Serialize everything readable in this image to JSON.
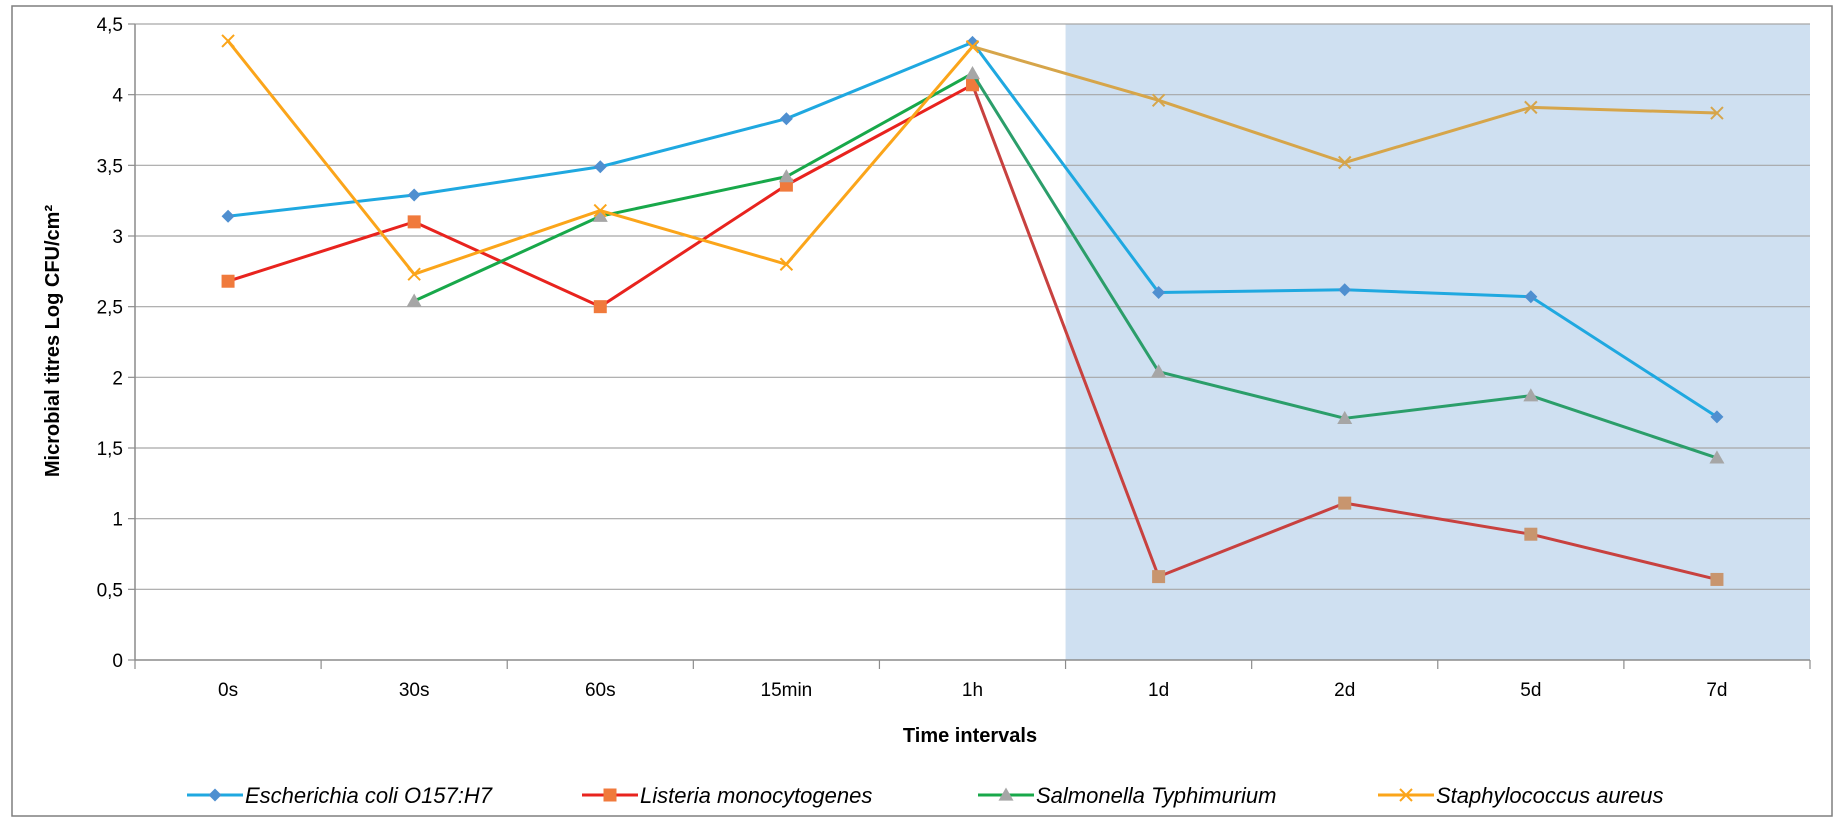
{
  "chart_data": {
    "type": "line",
    "title": "",
    "xlabel": "Time intervals",
    "ylabel": "Microbial titres Log CFU/cm²",
    "ylim": [
      0,
      4.5
    ],
    "y_ticks": [
      "0",
      "0,5",
      "1",
      "1,5",
      "2",
      "2,5",
      "3",
      "3,5",
      "4",
      "4,5"
    ],
    "categories": [
      "0s",
      "30s",
      "60s",
      "15min",
      "1h",
      "1d",
      "2d",
      "5d",
      "7d"
    ],
    "grid": true,
    "legend_position": "bottom",
    "shaded_region": {
      "from_category": "1d",
      "to_category": "7d",
      "color": "#cfe0f1"
    },
    "series": [
      {
        "name": "Escherichia coli O157:H7",
        "values": [
          3.14,
          3.29,
          3.49,
          3.83,
          4.37,
          2.6,
          2.62,
          2.57,
          1.72
        ],
        "color": "#1fa8e0",
        "color_shaded": "#1fa8e0",
        "marker": "diamond",
        "marker_color": "#4f8fd0"
      },
      {
        "name": "Listeria monocytogenes",
        "values": [
          2.68,
          3.1,
          2.5,
          3.36,
          4.07,
          0.59,
          1.11,
          0.89,
          0.57
        ],
        "color": "#e8231e",
        "color_shaded": "#c8413f",
        "marker": "square",
        "marker_color": "#f07a3c",
        "marker_color_shaded": "#c8956e"
      },
      {
        "name": "Salmonella Typhimurium",
        "values": [
          null,
          2.54,
          3.14,
          3.42,
          4.15,
          2.04,
          1.71,
          1.87,
          1.43
        ],
        "color": "#18a84a",
        "color_shaded": "#2b9e6a",
        "marker": "triangle",
        "marker_color": "#a6a6a6"
      },
      {
        "name": "Staphylococcus aureus",
        "values": [
          4.38,
          2.73,
          3.18,
          2.8,
          4.34,
          3.96,
          3.52,
          3.91,
          3.87
        ],
        "color": "#fba51a",
        "color_shaded": "#d6a54a",
        "marker": "x",
        "marker_color": "#fba51a",
        "marker_color_shaded": "#d6a54a"
      }
    ]
  }
}
